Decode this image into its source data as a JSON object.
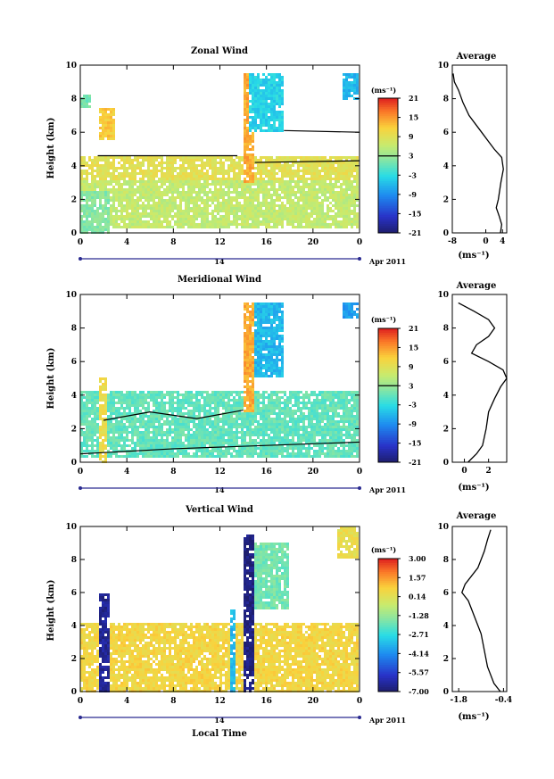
{
  "panels": [
    {
      "title": "Zonal Wind",
      "ylabel": "Height (km)",
      "avg_title": "Average",
      "colorbar_unit": "(ms⁻¹)",
      "colorbar_ticks": [
        "21",
        "15",
        "9",
        "3",
        "-3",
        "-9",
        "-15",
        "-21"
      ],
      "date_label": "Apr 2011",
      "day_label": "14",
      "avg_xlabel": "(ms⁻¹)",
      "avg_xticks": [
        "-8",
        "0",
        "4"
      ]
    },
    {
      "title": "Meridional Wind",
      "ylabel": "Height (km)",
      "avg_title": "Average",
      "colorbar_unit": "(ms⁻¹)",
      "colorbar_ticks": [
        "21",
        "15",
        "9",
        "3",
        "-3",
        "-9",
        "-15",
        "-21"
      ],
      "date_label": "Apr 2011",
      "day_label": "14",
      "avg_xlabel": "(ms⁻¹)",
      "avg_xticks": [
        "0",
        "2"
      ]
    },
    {
      "title": "Vertical Wind",
      "ylabel": "Height (km)",
      "avg_title": "Average",
      "colorbar_unit": "(ms⁻¹)",
      "colorbar_ticks": [
        "3.00",
        "1.57",
        "0.14",
        "-1.28",
        "-2.71",
        "-4.14",
        "-5.57",
        "-7.00"
      ],
      "date_label": "Apr 2011",
      "day_label": "14",
      "avg_xlabel": "(ms⁻¹)",
      "avg_xticks": [
        "-1.8",
        "-0.4"
      ],
      "xlabel": "Local Time"
    }
  ],
  "chart_data": [
    {
      "type": "heatmap",
      "title": "Zonal Wind",
      "ylabel": "Height (km)",
      "x_ticks": [
        "0",
        "4",
        "8",
        "12",
        "16",
        "20",
        "0"
      ],
      "y_ticks": [
        "0",
        "2",
        "4",
        "6",
        "8",
        "10"
      ],
      "xlim": [
        0,
        24
      ],
      "ylim": [
        0,
        10
      ],
      "colorbar": {
        "min": -21,
        "max": 21,
        "ticks": [
          21,
          15,
          9,
          3,
          -3,
          -9,
          -15,
          -21
        ],
        "zero_line": 3
      },
      "regions": [
        {
          "t0": 0,
          "t1": 24,
          "h0": 0.3,
          "h1": 3.2,
          "value": 6
        },
        {
          "t0": 0,
          "t1": 24,
          "h0": 3.2,
          "h1": 4.6,
          "value": 9
        },
        {
          "t0": 0,
          "t1": 2.5,
          "h0": 0,
          "h1": 2.5,
          "value": 2
        },
        {
          "t0": 14,
          "t1": 15,
          "h0": 3,
          "h1": 9.5,
          "value": 14
        },
        {
          "t0": 14.5,
          "t1": 17.5,
          "h0": 6,
          "h1": 9.5,
          "value": -4
        },
        {
          "t0": 22.5,
          "t1": 24,
          "h0": 8,
          "h1": 9.5,
          "value": -6
        },
        {
          "t0": 0,
          "t1": 1,
          "h0": 7.5,
          "h1": 8.3,
          "value": 1
        },
        {
          "t0": 1.5,
          "t1": 3,
          "h0": 5.5,
          "h1": 7.5,
          "value": 12
        }
      ],
      "contours": [
        {
          "t": [
            1.5,
            13.5
          ],
          "h": [
            4.6,
            4.6
          ]
        },
        {
          "t": [
            17.5,
            24
          ],
          "h": [
            6.1,
            6.0
          ]
        },
        {
          "t": [
            15,
            24
          ],
          "h": [
            4.2,
            4.3
          ]
        }
      ],
      "average": {
        "x": [
          3.5,
          3.8,
          3.2,
          2.5,
          3.0,
          3.6,
          4.2,
          3.8,
          2.0,
          0.5,
          -1.0,
          -2.5,
          -4.0,
          -5.5,
          -6.5,
          -7.5,
          -7.8
        ],
        "h": [
          0,
          0.5,
          1.0,
          1.5,
          2.0,
          3.0,
          3.8,
          4.5,
          5.0,
          5.5,
          6.0,
          6.5,
          7.0,
          7.8,
          8.5,
          9.0,
          9.5
        ],
        "xlim": [
          -8,
          5
        ],
        "x_ticks": [
          -8,
          0,
          4
        ]
      }
    },
    {
      "type": "heatmap",
      "title": "Meridional Wind",
      "ylabel": "Height (km)",
      "x_ticks": [
        "0",
        "4",
        "8",
        "12",
        "16",
        "20",
        "0"
      ],
      "y_ticks": [
        "0",
        "2",
        "4",
        "6",
        "8",
        "10"
      ],
      "xlim": [
        0,
        24
      ],
      "ylim": [
        0,
        10
      ],
      "colorbar": {
        "min": -21,
        "max": 21,
        "ticks": [
          21,
          15,
          9,
          3,
          -3,
          -9,
          -15,
          -21
        ],
        "zero_line": 3
      },
      "regions": [
        {
          "t0": 0,
          "t1": 24,
          "h0": 0.2,
          "h1": 4.2,
          "value": 0
        },
        {
          "t0": 1.5,
          "t1": 2.2,
          "h0": 0,
          "h1": 5,
          "value": 10
        },
        {
          "t0": 14,
          "t1": 15,
          "h0": 3,
          "h1": 9.5,
          "value": 14
        },
        {
          "t0": 15,
          "t1": 17.5,
          "h0": 5,
          "h1": 9.5,
          "value": -6
        },
        {
          "t0": 22.5,
          "t1": 24,
          "h0": 8.5,
          "h1": 9.5,
          "value": -8
        }
      ],
      "contours": [
        {
          "t": [
            2,
            6,
            10,
            14
          ],
          "h": [
            2.5,
            3.0,
            2.6,
            3.1
          ]
        },
        {
          "t": [
            0,
            8,
            16,
            24
          ],
          "h": [
            0.5,
            0.8,
            1.0,
            1.2
          ]
        }
      ],
      "average": {
        "x": [
          0.3,
          1.0,
          1.5,
          1.8,
          2.0,
          2.5,
          3.0,
          3.5,
          3.2,
          2.0,
          0.6,
          1.0,
          2.0,
          2.5,
          2.0,
          0.8,
          -0.5
        ],
        "h": [
          0,
          0.5,
          1.0,
          2.0,
          3.0,
          3.8,
          4.5,
          5.0,
          5.5,
          6.0,
          6.5,
          7.0,
          7.5,
          8.0,
          8.5,
          9.0,
          9.5
        ],
        "xlim": [
          -1,
          3.5
        ],
        "x_ticks": [
          0,
          2
        ]
      }
    },
    {
      "type": "heatmap",
      "title": "Vertical Wind",
      "ylabel": "Height (km)",
      "xlabel": "Local Time",
      "x_ticks": [
        "0",
        "4",
        "8",
        "12",
        "16",
        "20",
        "0"
      ],
      "y_ticks": [
        "0",
        "2",
        "4",
        "6",
        "8",
        "10"
      ],
      "xlim": [
        0,
        24
      ],
      "ylim": [
        0,
        10
      ],
      "colorbar": {
        "min": -7.0,
        "max": 3.0,
        "ticks": [
          3.0,
          1.57,
          0.14,
          -1.28,
          -2.71,
          -4.14,
          -5.57,
          -7.0
        ]
      },
      "regions": [
        {
          "t0": 0,
          "t1": 24,
          "h0": 0,
          "h1": 4.2,
          "value": 0.6
        },
        {
          "t0": 1.5,
          "t1": 2.5,
          "h0": 0,
          "h1": 6,
          "value": -6.5
        },
        {
          "t0": 14,
          "t1": 15,
          "h0": 0,
          "h1": 9.5,
          "value": -6.8
        },
        {
          "t0": 12.8,
          "t1": 13.4,
          "h0": 0,
          "h1": 5,
          "value": -3.5
        },
        {
          "t0": 15,
          "t1": 18,
          "h0": 5,
          "h1": 9,
          "value": -1.8
        },
        {
          "t0": 22,
          "t1": 24,
          "h0": 8,
          "h1": 10,
          "value": 0.3
        }
      ],
      "average": {
        "x": [
          -0.5,
          -0.7,
          -0.9,
          -1.0,
          -1.1,
          -1.3,
          -1.5,
          -1.7,
          -1.6,
          -1.2,
          -1.0,
          -0.9,
          -0.8
        ],
        "h": [
          0,
          0.5,
          1.5,
          2.5,
          3.5,
          4.5,
          5.5,
          6.0,
          6.5,
          7.5,
          8.5,
          9.2,
          9.8
        ],
        "xlim": [
          -2.0,
          -0.3
        ],
        "x_ticks": [
          -1.8,
          -0.4
        ]
      }
    }
  ]
}
